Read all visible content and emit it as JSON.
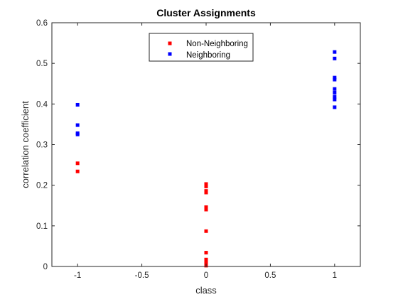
{
  "chart_data": {
    "type": "scatter",
    "title": "Cluster Assignments",
    "xlabel": "class",
    "ylabel": "correlation coefficient",
    "xlim": [
      -1.2,
      1.2
    ],
    "ylim": [
      0,
      0.6
    ],
    "xticks": [
      -1,
      -0.5,
      0,
      0.5,
      1
    ],
    "xtick_labels": [
      "-1",
      "-0.5",
      "0",
      "0.5",
      "1"
    ],
    "yticks": [
      0,
      0.1,
      0.2,
      0.3,
      0.4,
      0.5,
      0.6
    ],
    "ytick_labels": [
      "0",
      "0.1",
      "0.2",
      "0.3",
      "0.4",
      "0.5",
      "0.6"
    ],
    "grid": false,
    "legend_position": "top-center",
    "series": [
      {
        "name": "Non-Neighboring",
        "color": "#ff0000",
        "marker": "square",
        "points": [
          {
            "x": -1,
            "y": 0.254
          },
          {
            "x": -1,
            "y": 0.234
          },
          {
            "x": 0,
            "y": 0.203
          },
          {
            "x": 0,
            "y": 0.197
          },
          {
            "x": 0,
            "y": 0.186
          },
          {
            "x": 0,
            "y": 0.182
          },
          {
            "x": 0,
            "y": 0.146
          },
          {
            "x": 0,
            "y": 0.14
          },
          {
            "x": 0,
            "y": 0.087
          },
          {
            "x": 0,
            "y": 0.034
          },
          {
            "x": 0,
            "y": 0.017
          },
          {
            "x": 0,
            "y": 0.011
          },
          {
            "x": 0,
            "y": 0.006
          },
          {
            "x": 0,
            "y": 0.002
          }
        ]
      },
      {
        "name": "Neighboring",
        "color": "#0000ff",
        "marker": "square",
        "points": [
          {
            "x": -1,
            "y": 0.398
          },
          {
            "x": -1,
            "y": 0.348
          },
          {
            "x": -1,
            "y": 0.328
          },
          {
            "x": -1,
            "y": 0.325
          },
          {
            "x": 1,
            "y": 0.528
          },
          {
            "x": 1,
            "y": 0.512
          },
          {
            "x": 1,
            "y": 0.465
          },
          {
            "x": 1,
            "y": 0.46
          },
          {
            "x": 1,
            "y": 0.437
          },
          {
            "x": 1,
            "y": 0.428
          },
          {
            "x": 1,
            "y": 0.418
          },
          {
            "x": 1,
            "y": 0.411
          },
          {
            "x": 1,
            "y": 0.392
          }
        ]
      }
    ]
  }
}
